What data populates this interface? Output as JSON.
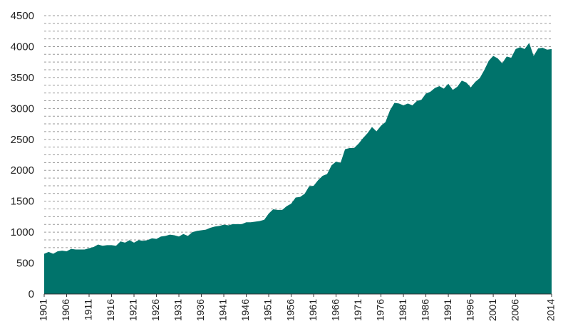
{
  "chart_data": {
    "type": "area",
    "title": "",
    "xlabel": "",
    "ylabel": "",
    "ylim": [
      0,
      4500
    ],
    "xlim": [
      1901,
      2014
    ],
    "y_ticks": [
      0,
      500,
      1000,
      1500,
      2000,
      2500,
      3000,
      3500,
      4000,
      4500
    ],
    "x_ticks": [
      1901,
      1906,
      1911,
      1916,
      1921,
      1926,
      1931,
      1936,
      1941,
      1946,
      1951,
      1956,
      1961,
      1966,
      1971,
      1976,
      1981,
      1986,
      1991,
      1996,
      2001,
      2006,
      2014
    ],
    "y_tick_labels": [
      "0",
      "500",
      "1000",
      "1500",
      "2000",
      "2500",
      "3000",
      "3500",
      "4000",
      "4500"
    ],
    "x_tick_labels": [
      "1901",
      "1906",
      "1911",
      "1916",
      "1921",
      "1926",
      "1931",
      "1936",
      "1941",
      "1946",
      "1951",
      "1956",
      "1961",
      "1966",
      "1971",
      "1976",
      "1981",
      "1986",
      "1991",
      "1996",
      "2001",
      "2006",
      "2014"
    ],
    "grid": true,
    "fill_color": "#00736b",
    "x": [
      1901,
      1902,
      1903,
      1904,
      1905,
      1906,
      1907,
      1908,
      1909,
      1910,
      1911,
      1912,
      1913,
      1914,
      1915,
      1916,
      1917,
      1918,
      1919,
      1920,
      1921,
      1922,
      1923,
      1924,
      1925,
      1926,
      1927,
      1928,
      1929,
      1930,
      1931,
      1932,
      1933,
      1934,
      1935,
      1936,
      1937,
      1938,
      1939,
      1940,
      1941,
      1942,
      1943,
      1944,
      1945,
      1946,
      1947,
      1948,
      1949,
      1950,
      1951,
      1952,
      1953,
      1954,
      1955,
      1956,
      1957,
      1958,
      1959,
      1960,
      1961,
      1962,
      1963,
      1964,
      1965,
      1966,
      1967,
      1968,
      1969,
      1970,
      1971,
      1972,
      1973,
      1974,
      1975,
      1976,
      1977,
      1978,
      1979,
      1980,
      1981,
      1982,
      1983,
      1984,
      1985,
      1986,
      1987,
      1988,
      1989,
      1990,
      1991,
      1992,
      1993,
      1994,
      1995,
      1996,
      1997,
      1998,
      1999,
      2000,
      2001,
      2002,
      2003,
      2004,
      2005,
      2006,
      2007,
      2008,
      2009,
      2010,
      2011,
      2012,
      2013,
      2014
    ],
    "y": [
      650,
      680,
      650,
      690,
      700,
      690,
      730,
      720,
      720,
      720,
      740,
      760,
      800,
      780,
      790,
      790,
      780,
      850,
      830,
      870,
      830,
      870,
      860,
      870,
      900,
      890,
      930,
      940,
      960,
      950,
      930,
      970,
      940,
      1000,
      1020,
      1030,
      1040,
      1070,
      1090,
      1100,
      1120,
      1110,
      1130,
      1130,
      1130,
      1160,
      1160,
      1170,
      1180,
      1200,
      1300,
      1370,
      1360,
      1360,
      1420,
      1460,
      1560,
      1570,
      1620,
      1740,
      1750,
      1840,
      1910,
      1940,
      2080,
      2140,
      2120,
      2340,
      2360,
      2360,
      2430,
      2520,
      2600,
      2700,
      2630,
      2720,
      2780,
      2970,
      3090,
      3080,
      3050,
      3080,
      3050,
      3120,
      3140,
      3240,
      3270,
      3330,
      3360,
      3320,
      3400,
      3300,
      3350,
      3450,
      3420,
      3340,
      3430,
      3490,
      3620,
      3770,
      3850,
      3810,
      3730,
      3840,
      3820,
      3960,
      3990,
      3960,
      4060,
      3850,
      3970,
      3980,
      3950,
      3960
    ]
  }
}
